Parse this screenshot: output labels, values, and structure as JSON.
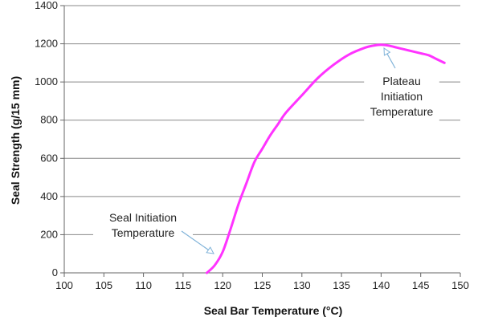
{
  "chart_data": {
    "type": "line",
    "xlabel": "Seal Bar Temperature (°C)",
    "ylabel": "Seal Strength (g/15 mm)",
    "xlim": [
      100,
      150
    ],
    "ylim": [
      0,
      1400
    ],
    "x_ticks": [
      "100",
      "105",
      "110",
      "115",
      "120",
      "125",
      "130",
      "135",
      "140",
      "145",
      "150"
    ],
    "y_ticks": [
      "0",
      "200",
      "400",
      "600",
      "800",
      "1000",
      "1200",
      "1400"
    ],
    "grid": "horizontal",
    "series": [
      {
        "color": "#ff33ff",
        "x": [
          118,
          119,
          120,
          121,
          122,
          123,
          124,
          125,
          126,
          127,
          128,
          130,
          132,
          134,
          136,
          138,
          139,
          140,
          141,
          142,
          143,
          144,
          145,
          146,
          147,
          148
        ],
        "y": [
          0,
          40,
          110,
          230,
          360,
          470,
          580,
          650,
          720,
          780,
          840,
          930,
          1020,
          1090,
          1145,
          1180,
          1190,
          1195,
          1190,
          1180,
          1170,
          1160,
          1150,
          1140,
          1120,
          1100
        ]
      }
    ],
    "annotations": [
      {
        "lines": [
          "Seal Initiation",
          "Temperature"
        ],
        "point": [
          119,
          30
        ]
      },
      {
        "lines": [
          "Plateau",
          "Initiation",
          "Temperature"
        ],
        "point": [
          140.5,
          1190
        ]
      }
    ]
  }
}
